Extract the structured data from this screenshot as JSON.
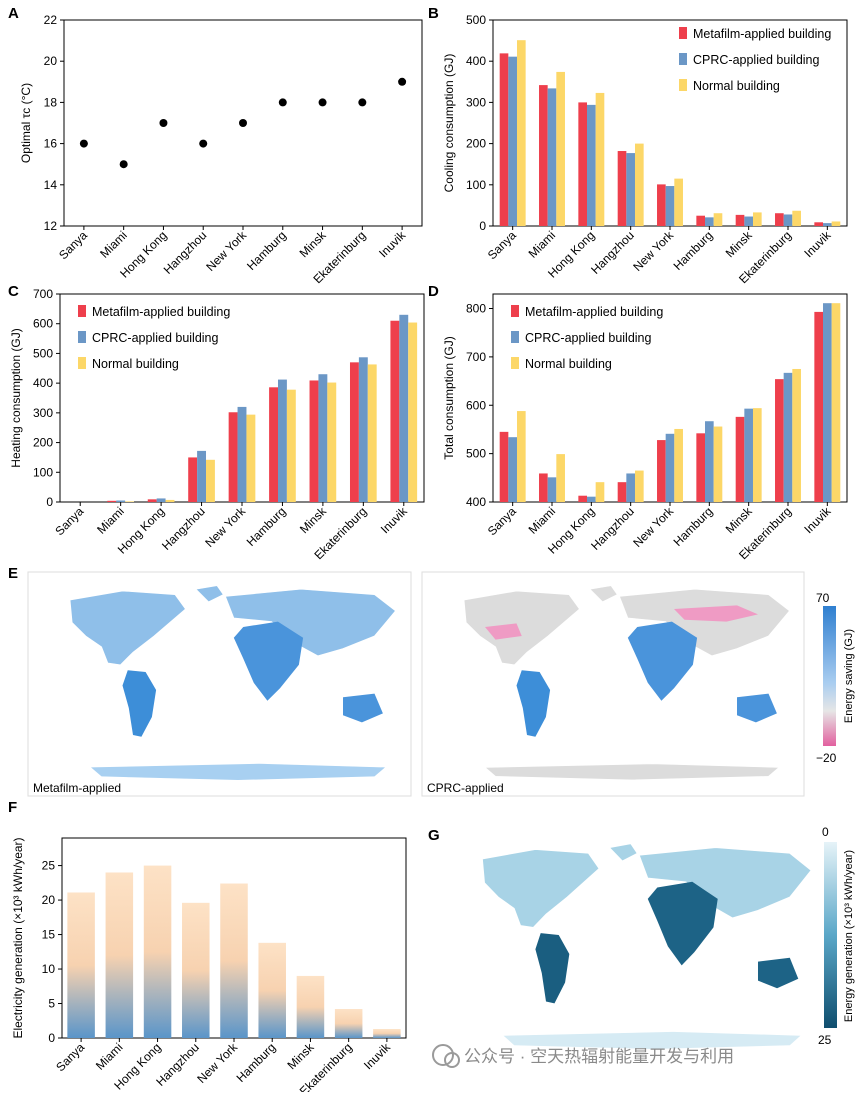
{
  "panels": {
    "A": "A",
    "B": "B",
    "C": "C",
    "D": "D",
    "E": "E",
    "F": "F",
    "G": "G"
  },
  "cities": [
    "Sanya",
    "Miami",
    "Hong Kong",
    "Hangzhou",
    "New York",
    "Hamburg",
    "Minsk",
    "Ekaterinburg",
    "Inuvik"
  ],
  "colors": {
    "metafilm": "#ee3f4c",
    "cprc": "#6b97c6",
    "normal": "#fcd768",
    "axis": "#000000"
  },
  "chart_data": [
    {
      "id": "A",
      "type": "scatter",
      "ylabel": "Optimal τc (°C)",
      "categories": [
        "Sanya",
        "Miami",
        "Hong Kong",
        "Hangzhou",
        "New York",
        "Hamburg",
        "Minsk",
        "Ekaterinburg",
        "Inuvik"
      ],
      "values": [
        16,
        15,
        17,
        16,
        17,
        18,
        18,
        18,
        19
      ],
      "ylim": [
        12,
        22
      ],
      "yticks": [
        12,
        14,
        16,
        18,
        20,
        22
      ]
    },
    {
      "id": "B",
      "type": "bar",
      "ylabel": "Cooling consumption (GJ)",
      "categories": [
        "Sanya",
        "Miami",
        "Hong Kong",
        "Hangzhou",
        "New York",
        "Hamburg",
        "Minsk",
        "Ekaterinburg",
        "Inuvik"
      ],
      "series": [
        {
          "name": "Metafilm-applied building",
          "values": [
            419,
            342,
            300,
            182,
            101,
            25,
            27,
            31,
            9
          ]
        },
        {
          "name": "CPRC-applied building",
          "values": [
            411,
            334,
            294,
            177,
            97,
            21,
            23,
            28,
            7
          ]
        },
        {
          "name": "Normal building",
          "values": [
            451,
            374,
            323,
            200,
            115,
            31,
            33,
            37,
            11
          ]
        }
      ],
      "ylim": [
        0,
        500
      ],
      "yticks": [
        0,
        100,
        200,
        300,
        400,
        500
      ],
      "legend_position": "top-right"
    },
    {
      "id": "C",
      "type": "bar",
      "ylabel": "Heating consumption (GJ)",
      "categories": [
        "Sanya",
        "Miami",
        "Hong Kong",
        "Hangzhou",
        "New York",
        "Hamburg",
        "Minsk",
        "Ekaterinburg",
        "Inuvik"
      ],
      "series": [
        {
          "name": "Metafilm-applied building",
          "values": [
            0,
            4,
            9,
            150,
            302,
            386,
            409,
            470,
            610
          ]
        },
        {
          "name": "CPRC-applied building",
          "values": [
            0,
            5,
            12,
            172,
            320,
            412,
            430,
            487,
            630
          ]
        },
        {
          "name": "Normal building",
          "values": [
            0,
            2,
            7,
            142,
            294,
            378,
            402,
            463,
            604
          ]
        }
      ],
      "ylim": [
        0,
        700
      ],
      "yticks": [
        0,
        100,
        200,
        300,
        400,
        500,
        600,
        700
      ],
      "legend_position": "top-left"
    },
    {
      "id": "D",
      "type": "bar",
      "ylabel": "Total consumption (GJ)",
      "categories": [
        "Sanya",
        "Miami",
        "Hong Kong",
        "Hangzhou",
        "New York",
        "Hamburg",
        "Minsk",
        "Ekaterinburg",
        "Inuvik"
      ],
      "series": [
        {
          "name": "Metafilm-applied building",
          "values": [
            545,
            459,
            413,
            441,
            528,
            542,
            576,
            654,
            793
          ]
        },
        {
          "name": "CPRC-applied building",
          "values": [
            534,
            451,
            411,
            459,
            541,
            567,
            593,
            667,
            811
          ]
        },
        {
          "name": "Normal building",
          "values": [
            588,
            499,
            441,
            465,
            551,
            556,
            594,
            675,
            811
          ]
        }
      ],
      "ylim": [
        400,
        830
      ],
      "yticks": [
        400,
        500,
        600,
        700,
        800
      ],
      "legend_position": "top-left"
    },
    {
      "id": "F",
      "type": "bar",
      "ylabel": "Electricity generation (×10³ kWh/year)",
      "categories": [
        "Sanya",
        "Miami",
        "Hong Kong",
        "Hangzhou",
        "New York",
        "Hamburg",
        "Minsk",
        "Ekaterinburg",
        "Inuvik"
      ],
      "values": [
        21.1,
        24.0,
        25.0,
        19.6,
        22.4,
        13.8,
        9.0,
        4.2,
        1.3
      ],
      "ylim": [
        0,
        29
      ],
      "yticks": [
        0,
        5,
        10,
        15,
        20,
        25
      ]
    }
  ],
  "maps": {
    "E_left_label": "Metafilm-applied",
    "E_right_label": "CPRC-applied",
    "E_colorbar": {
      "label": "Energy saving (GJ)",
      "max": "70",
      "min": "−20"
    },
    "G_colorbar": {
      "label": "Energy generation (×10³ kWh/year)",
      "top": "0",
      "bottom": "25"
    }
  },
  "watermark": "公众号 · 空天热辐射能量开发与利用"
}
